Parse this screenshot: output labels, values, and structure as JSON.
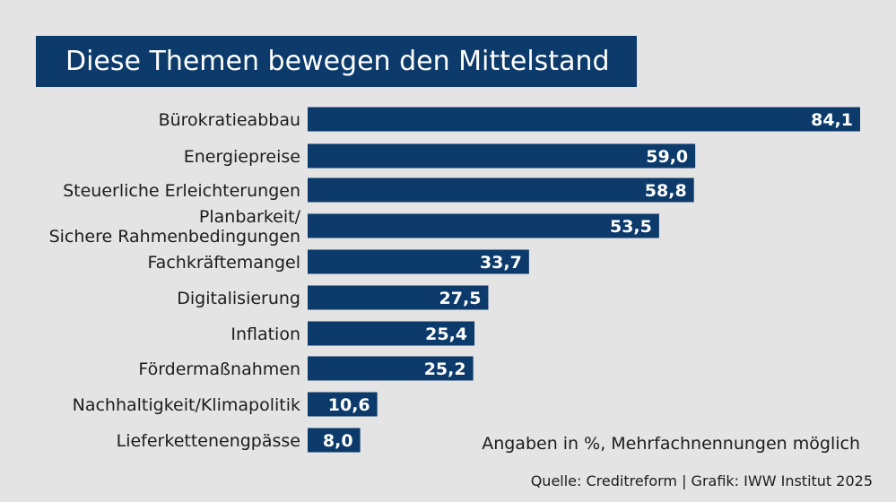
{
  "colors": {
    "background": "#e4e4e4",
    "bar": "#0c3a6b",
    "title_background": "#0c3a6b",
    "value_text": "#ffffff"
  },
  "title": "Diese Themen bewegen den Mittelstand",
  "note": "Angaben in %, Mehrfachnennungen möglich",
  "source": "Quelle: Creditreform | Grafik: IWW Institut 2025",
  "chart_data": {
    "type": "bar",
    "orientation": "horizontal",
    "title": "Diese Themen bewegen den Mittelstand",
    "categories": [
      [
        "Bürokratieabbau"
      ],
      [
        "Energiepreise"
      ],
      [
        "Steuerliche Erleichterungen"
      ],
      [
        "Planbarkeit/",
        "Sichere Rahmenbedingungen"
      ],
      [
        "Fachkräftemangel"
      ],
      [
        "Digitalisierung"
      ],
      [
        "Inflation"
      ],
      [
        "Fördermaßnahmen"
      ],
      [
        "Nachhaltigkeit/Klimapolitik"
      ],
      [
        "Lieferkettenengpässe"
      ]
    ],
    "values": [
      84.1,
      59.0,
      58.8,
      53.5,
      33.7,
      27.5,
      25.4,
      25.2,
      10.6,
      8.0
    ],
    "value_labels": [
      "84,1",
      "59,0",
      "58,8",
      "53,5",
      "33,7",
      "27,5",
      "25,4",
      "25,2",
      "10,6",
      "8,0"
    ],
    "unit": "%",
    "xlim": [
      0,
      84.1
    ],
    "grid": false,
    "legend": "none"
  }
}
